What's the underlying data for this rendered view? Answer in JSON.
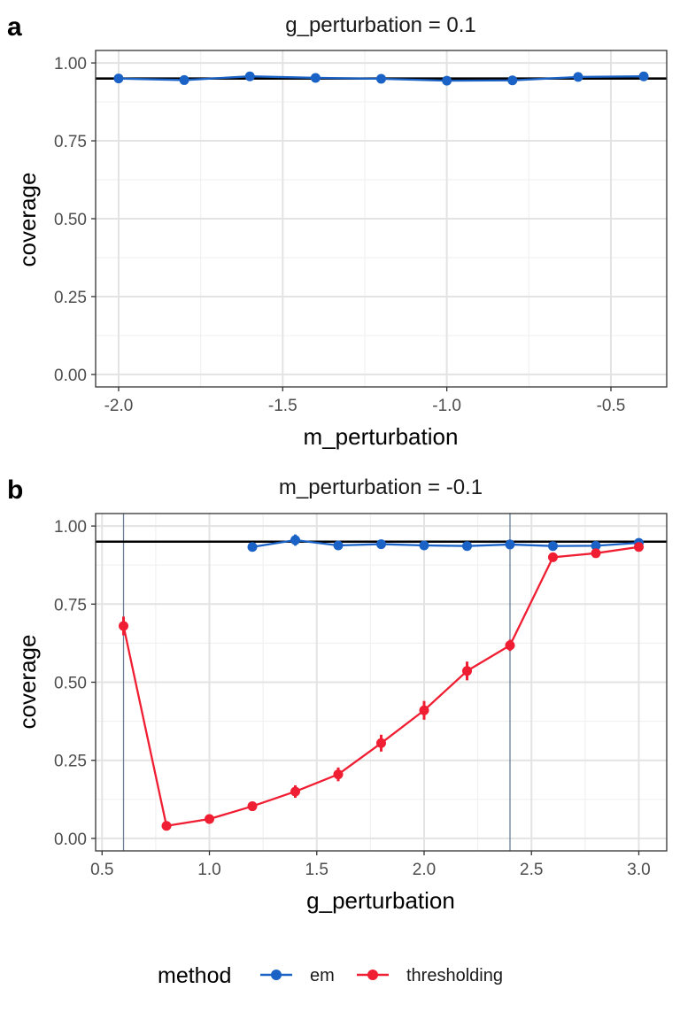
{
  "chart_data": [
    {
      "panel": "a",
      "type": "line",
      "title": "g_perturbation = 0.1",
      "xlabel": "m_perturbation",
      "ylabel": "coverage",
      "xlim": [
        -2.07,
        -0.33
      ],
      "ylim": [
        -0.04,
        1.04
      ],
      "xticks": [
        -2.0,
        -1.5,
        -1.0,
        -0.5
      ],
      "xtick_labels": [
        "-2.0",
        "-1.5",
        "-1.0",
        "-0.5"
      ],
      "yticks": [
        0,
        0.25,
        0.5,
        0.75,
        1.0
      ],
      "ytick_labels": [
        "0.00",
        "0.25",
        "0.50",
        "0.75",
        "1.00"
      ],
      "reference_line_y": 0.95,
      "vertical_lines_x": [],
      "grid": true,
      "series": [
        {
          "name": "em",
          "x": [
            -2.0,
            -1.8,
            -1.6,
            -1.4,
            -1.2,
            -1.0,
            -0.8,
            -0.6,
            -0.4
          ],
          "y": [
            0.95,
            0.945,
            0.957,
            0.952,
            0.949,
            0.943,
            0.944,
            0.955,
            0.957
          ],
          "err": [
            0.006,
            0.006,
            0.006,
            0.006,
            0.006,
            0.006,
            0.006,
            0.006,
            0.006
          ]
        }
      ]
    },
    {
      "panel": "b",
      "type": "line",
      "title": "m_perturbation = -0.1",
      "xlabel": "g_perturbation",
      "ylabel": "coverage",
      "xlim": [
        0.47,
        3.13
      ],
      "ylim": [
        -0.04,
        1.04
      ],
      "xticks": [
        0.5,
        1.0,
        1.5,
        2.0,
        2.5,
        3.0
      ],
      "xtick_labels": [
        "0.5",
        "1.0",
        "1.5",
        "2.0",
        "2.5",
        "3.0"
      ],
      "yticks": [
        0,
        0.25,
        0.5,
        0.75,
        1.0
      ],
      "ytick_labels": [
        "0.00",
        "0.25",
        "0.50",
        "0.75",
        "1.00"
      ],
      "reference_line_y": 0.95,
      "vertical_lines_x": [
        0.6,
        2.4
      ],
      "grid": true,
      "series": [
        {
          "name": "em",
          "x": [
            1.2,
            1.4,
            1.6,
            1.8,
            2.0,
            2.2,
            2.4,
            2.6,
            2.8,
            3.0
          ],
          "y": [
            0.933,
            0.955,
            0.938,
            0.942,
            0.938,
            0.936,
            0.941,
            0.936,
            0.937,
            0.946
          ],
          "err": [
            0.008,
            0.018,
            0.008,
            0.008,
            0.008,
            0.008,
            0.008,
            0.008,
            0.008,
            0.008
          ]
        },
        {
          "name": "thresholding",
          "x": [
            0.6,
            0.8,
            1.0,
            1.2,
            1.4,
            1.6,
            1.8,
            2.0,
            2.2,
            2.4,
            2.6,
            2.8,
            3.0
          ],
          "y": [
            0.68,
            0.04,
            0.062,
            0.103,
            0.15,
            0.205,
            0.305,
            0.41,
            0.536,
            0.618,
            0.9,
            0.913,
            0.933
          ],
          "err": [
            0.03,
            0.008,
            0.01,
            0.012,
            0.02,
            0.022,
            0.027,
            0.03,
            0.03,
            0.018,
            0.01,
            0.01,
            0.01
          ]
        }
      ]
    }
  ],
  "panel_labels": {
    "a": "a",
    "b": "b"
  },
  "legend": {
    "title": "method",
    "items": [
      {
        "label": "em",
        "color": "#1a62c6"
      },
      {
        "label": "thresholding",
        "color": "#f01e32"
      }
    ]
  },
  "colors": {
    "em": "#1a62c6",
    "thresholding": "#f01e32",
    "reference_line": "#000000",
    "vertical_line": "#6b7f99",
    "grid_major": "#e3e3e3",
    "grid_minor": "#f1f1f1",
    "panel_border": "#333333"
  }
}
